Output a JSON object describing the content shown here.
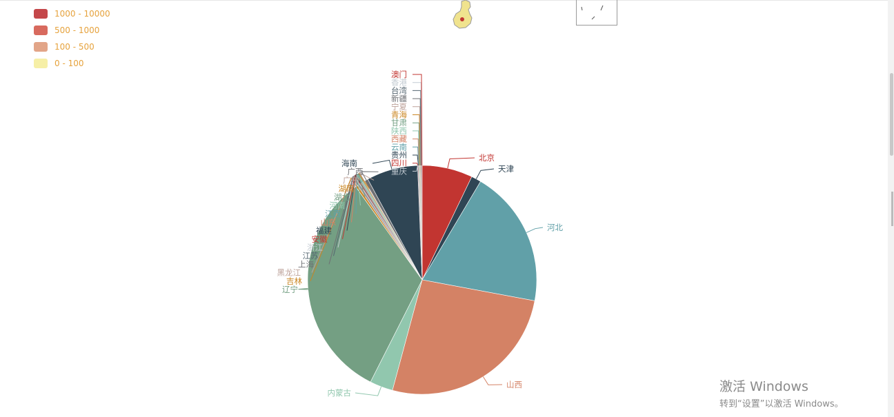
{
  "legend": {
    "items": [
      {
        "label": "1000 - 10000",
        "color": "#c23531"
      },
      {
        "label": "500 - 1000",
        "color": "#d86a5e"
      },
      {
        "label": "100 - 500",
        "color": "#e6a77f"
      },
      {
        "label": "0 - 100",
        "color": "#f6efa6"
      }
    ]
  },
  "watermark": {
    "title": "激活 Windows",
    "subtitle": "转到“设置”以激活 Windows。"
  },
  "chart_data": {
    "type": "pie",
    "slices": [
      {
        "name": "北京",
        "value": 7.2,
        "color": "#c23531"
      },
      {
        "name": "天津",
        "value": 1.4,
        "color": "#2f4554"
      },
      {
        "name": "河北",
        "value": 19.6,
        "color": "#61a0a8"
      },
      {
        "name": "山西",
        "value": 26.5,
        "color": "#d48265"
      },
      {
        "name": "内蒙古",
        "value": 3.3,
        "color": "#91c7ae"
      },
      {
        "name": "辽宁",
        "value": 33.0,
        "color": "#749f83"
      },
      {
        "name": "吉林",
        "value": 0.3,
        "color": "#ca8622"
      },
      {
        "name": "黑龙江",
        "value": 0.1,
        "color": "#bda29a"
      },
      {
        "name": "上海",
        "value": 0.1,
        "color": "#6e7074"
      },
      {
        "name": "江苏",
        "value": 0.1,
        "color": "#546570"
      },
      {
        "name": "浙江",
        "value": 0.1,
        "color": "#c4ccd3"
      },
      {
        "name": "安徽",
        "value": 0.1,
        "color": "#c23531"
      },
      {
        "name": "福建",
        "value": 0.1,
        "color": "#2f4554"
      },
      {
        "name": "山东",
        "value": 0.1,
        "color": "#d48265"
      },
      {
        "name": "江西",
        "value": 0.1,
        "color": "#61a0a8"
      },
      {
        "name": "河南",
        "value": 0.1,
        "color": "#91c7ae"
      },
      {
        "name": "湖北",
        "value": 0.1,
        "color": "#749f83"
      },
      {
        "name": "湖南",
        "value": 0.1,
        "color": "#ca8622"
      },
      {
        "name": "广东",
        "value": 0.1,
        "color": "#bda29a"
      },
      {
        "name": "广西",
        "value": 0.5,
        "color": "#6e7074"
      },
      {
        "name": "海南",
        "value": 7.3,
        "color": "#2f4554"
      },
      {
        "name": "重庆",
        "value": 0.05,
        "color": "#c4ccd3"
      },
      {
        "name": "四川",
        "value": 0.05,
        "color": "#c23531"
      },
      {
        "name": "贵州",
        "value": 0.05,
        "color": "#2f4554"
      },
      {
        "name": "云南",
        "value": 0.05,
        "color": "#61a0a8"
      },
      {
        "name": "西藏",
        "value": 0.05,
        "color": "#d48265"
      },
      {
        "name": "陕西",
        "value": 0.05,
        "color": "#91c7ae"
      },
      {
        "name": "甘肃",
        "value": 0.05,
        "color": "#749f83"
      },
      {
        "name": "青海",
        "value": 0.05,
        "color": "#ca8622"
      },
      {
        "name": "宁夏",
        "value": 0.05,
        "color": "#bda29a"
      },
      {
        "name": "新疆",
        "value": 0.05,
        "color": "#6e7074"
      },
      {
        "name": "台湾",
        "value": 0.05,
        "color": "#546570"
      },
      {
        "name": "香港",
        "value": 0.05,
        "color": "#c4ccd3"
      },
      {
        "name": "澳门",
        "value": 0.05,
        "color": "#c23531"
      }
    ]
  }
}
